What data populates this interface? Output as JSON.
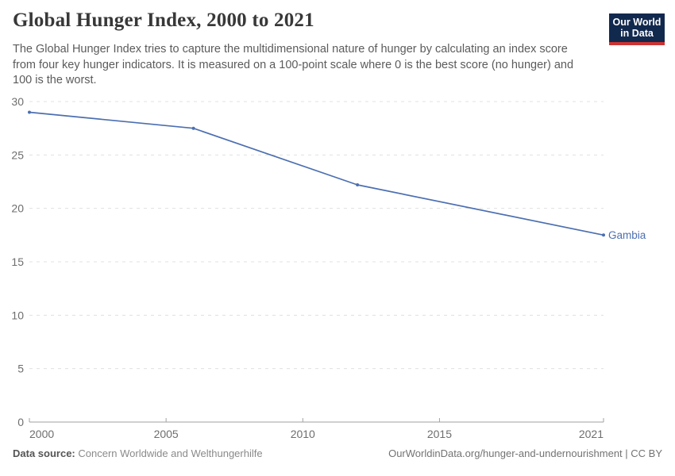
{
  "header": {
    "title": "Global Hunger Index, 2000 to 2021",
    "subtitle": "The Global Hunger Index tries to capture the multidimensional nature of hunger by calculating an index score from four key hunger indicators. It is measured on a 100-point scale where 0 is the best score (no hunger) and 100 is the worst.",
    "logo": {
      "line1": "Our World",
      "line2": "in Data",
      "bg_color": "#12294e",
      "stripe_color": "#cc3333",
      "text_color": "#ffffff"
    }
  },
  "chart_data": {
    "type": "line",
    "title": "Global Hunger Index, 2000 to 2021",
    "xlabel": "",
    "ylabel": "",
    "xlim": [
      2000,
      2021
    ],
    "ylim": [
      0,
      30
    ],
    "xticks": [
      2000,
      2005,
      2010,
      2015,
      2021
    ],
    "yticks": [
      0,
      5,
      10,
      15,
      20,
      25,
      30
    ],
    "grid": "horizontal-dashed",
    "legend_position": "end-of-line-label",
    "series": [
      {
        "name": "Gambia",
        "color": "#4c6fb1",
        "x": [
          2000,
          2006,
          2012,
          2021
        ],
        "values": [
          29.0,
          27.5,
          22.2,
          17.5
        ]
      }
    ]
  },
  "footer": {
    "data_source_label": "Data source:",
    "data_source_value": "Concern Worldwide and Welthungerhilfe",
    "attribution": "OurWorldinData.org/hunger-and-undernourishment | CC BY"
  },
  "colors": {
    "line": "#4c6fb1",
    "grid": "#e0e0e0",
    "axis": "#a1a1a1",
    "tick_label": "#6e6e6e",
    "title_text": "#383838",
    "subtitle_text": "#5b5b5b",
    "footer_text": "#737373"
  }
}
